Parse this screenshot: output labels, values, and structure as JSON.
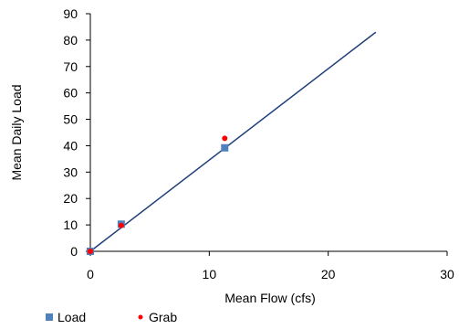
{
  "chart_data": {
    "type": "scatter",
    "xlabel": "Mean Flow (cfs)",
    "ylabel": "Mean Daily Load",
    "xlim": [
      0,
      30
    ],
    "ylim": [
      0,
      90
    ],
    "x_ticks": [
      0,
      10,
      20,
      30
    ],
    "y_ticks": [
      0,
      10,
      20,
      30,
      40,
      50,
      60,
      70,
      80,
      90
    ],
    "grid": false,
    "legend": "bottom-left",
    "series": [
      {
        "name": "Load",
        "marker": "square",
        "color": "#4F81BD",
        "points": [
          {
            "x": 0,
            "y": 0
          },
          {
            "x": 2.6,
            "y": 10.3
          },
          {
            "x": 11.3,
            "y": 39.2
          }
        ]
      },
      {
        "name": "Grab",
        "marker": "circle",
        "color": "#FF0000",
        "points": [
          {
            "x": 0,
            "y": 0
          },
          {
            "x": 2.6,
            "y": 9.8
          },
          {
            "x": 11.3,
            "y": 42.8
          }
        ]
      }
    ],
    "fit_line": {
      "color": "#1F3F7A",
      "points": [
        {
          "x": 0,
          "y": 0
        },
        {
          "x": 24,
          "y": 83
        }
      ]
    }
  }
}
